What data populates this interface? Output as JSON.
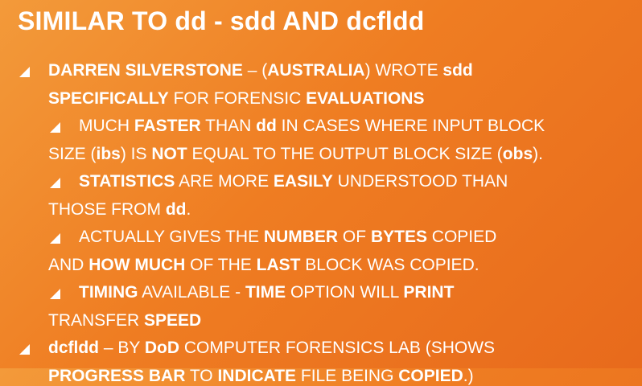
{
  "slide": {
    "title": "SIMILAR TO dd - sdd AND dcfldd",
    "bullets": [
      {
        "level": 1,
        "lines": [
          [
            {
              "t": "DARREN SILVERSTONE",
              "b": true
            },
            {
              "t": " – (",
              "b": false
            },
            {
              "t": "AUSTRALIA",
              "b": true
            },
            {
              "t": ") WROTE ",
              "b": false
            },
            {
              "t": "sdd",
              "b": true
            }
          ],
          [
            {
              "t": "SPECIFICALLY",
              "b": true
            },
            {
              "t": " FOR FORENSIC ",
              "b": false
            },
            {
              "t": "EVALUATIONS",
              "b": true
            }
          ]
        ]
      },
      {
        "level": 2,
        "lines": [
          [
            {
              "t": "MUCH ",
              "b": false
            },
            {
              "t": "FASTER",
              "b": true
            },
            {
              "t": " THAN ",
              "b": false
            },
            {
              "t": "dd",
              "b": true
            },
            {
              "t": " IN CASES WHERE INPUT BLOCK",
              "b": false
            }
          ],
          [
            {
              "t": "SIZE (",
              "b": false
            },
            {
              "t": "ibs",
              "b": true
            },
            {
              "t": ") IS ",
              "b": false
            },
            {
              "t": "NOT",
              "b": true
            },
            {
              "t": " EQUAL TO THE OUTPUT BLOCK SIZE (",
              "b": false
            },
            {
              "t": "obs",
              "b": true
            },
            {
              "t": ").",
              "b": false
            }
          ]
        ]
      },
      {
        "level": 2,
        "lines": [
          [
            {
              "t": "STATISTICS",
              "b": true
            },
            {
              "t": " ARE MORE ",
              "b": false
            },
            {
              "t": "EASILY",
              "b": true
            },
            {
              "t": " UNDERSTOOD THAN",
              "b": false
            }
          ],
          [
            {
              "t": "THOSE FROM ",
              "b": false
            },
            {
              "t": "dd",
              "b": true
            },
            {
              "t": ".",
              "b": false
            }
          ]
        ]
      },
      {
        "level": 2,
        "lines": [
          [
            {
              "t": "ACTUALLY GIVES THE ",
              "b": false
            },
            {
              "t": "NUMBER",
              "b": true
            },
            {
              "t": " OF ",
              "b": false
            },
            {
              "t": "BYTES",
              "b": true
            },
            {
              "t": " COPIED",
              "b": false
            }
          ],
          [
            {
              "t": "AND ",
              "b": false
            },
            {
              "t": "HOW MUCH",
              "b": true
            },
            {
              "t": " OF THE ",
              "b": false
            },
            {
              "t": "LAST",
              "b": true
            },
            {
              "t": " BLOCK WAS COPIED.",
              "b": false
            }
          ]
        ]
      },
      {
        "level": 2,
        "lines": [
          [
            {
              "t": "TIMING",
              "b": true
            },
            {
              "t": " AVAILABLE - ",
              "b": false
            },
            {
              "t": "TIME",
              "b": true
            },
            {
              "t": " OPTION WILL ",
              "b": false
            },
            {
              "t": "PRINT",
              "b": true
            }
          ],
          [
            {
              "t": "TRANSFER ",
              "b": false
            },
            {
              "t": "SPEED",
              "b": true
            }
          ]
        ]
      },
      {
        "level": 1,
        "lines": [
          [
            {
              "t": "dcfldd",
              "b": true
            },
            {
              "t": " – BY ",
              "b": false
            },
            {
              "t": "DoD",
              "b": true
            },
            {
              "t": " COMPUTER FORENSICS LAB (SHOWS",
              "b": false
            }
          ],
          [
            {
              "t": "PROGRESS BAR",
              "b": true
            },
            {
              "t": " TO ",
              "b": false
            },
            {
              "t": "INDICATE",
              "b": true
            },
            {
              "t": " FILE BEING ",
              "b": false
            },
            {
              "t": "COPIED",
              "b": true
            },
            {
              "t": ".)",
              "b": false
            }
          ]
        ]
      }
    ]
  }
}
